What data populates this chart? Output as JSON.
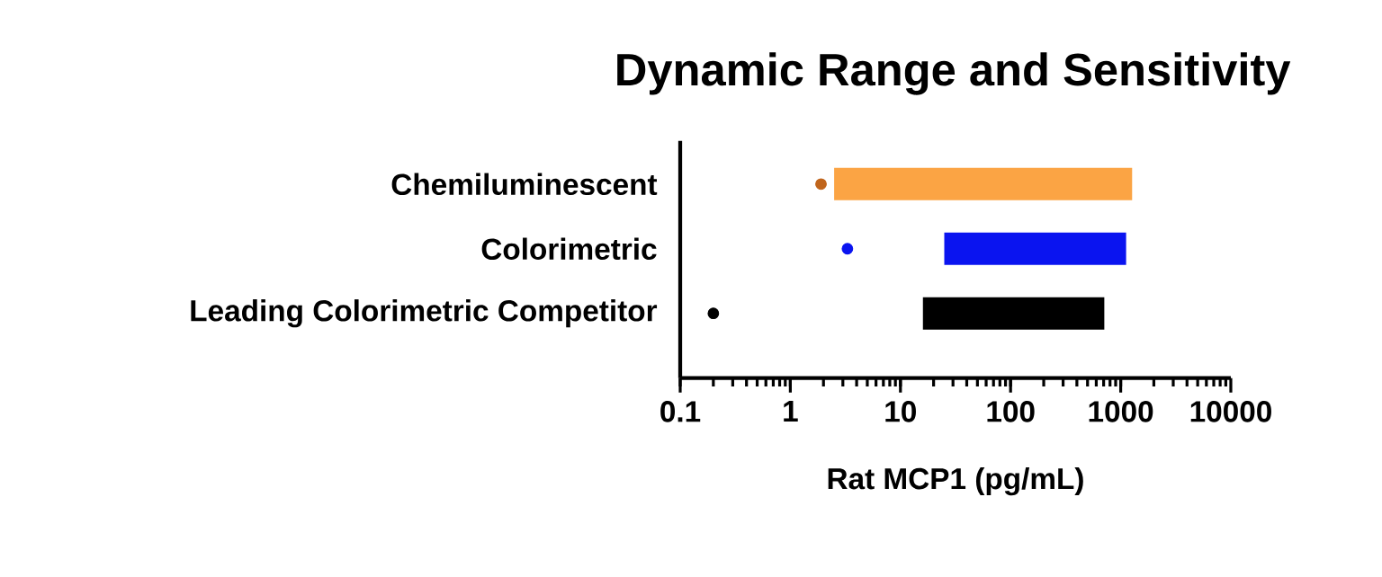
{
  "chart_data": {
    "type": "bar",
    "title": "Dynamic Range and Sensitivity",
    "xlabel": "Rat MCP1 (pg/mL)",
    "orientation": "horizontal",
    "log": "x",
    "categories": [
      "Chemiluminescent",
      "Colorimetric",
      "Leading Colorimetric Competitor"
    ],
    "xlim": [
      0.1,
      10000
    ],
    "xticks": [
      0.1,
      1,
      10,
      100,
      1000,
      10000
    ],
    "series": [
      {
        "base": [
          2.5,
          25,
          16
        ],
        "values": [
          1267.5,
          1095,
          694
        ],
        "colors": [
          "#fba444",
          "#0a14f0",
          "#000000"
        ]
      },
      {
        "type": "scatter",
        "marker": "circle",
        "values": [
          1.9,
          3.3,
          0.2
        ],
        "colors": [
          "#c0651c",
          "#0a14f0",
          "#000000"
        ]
      }
    ]
  }
}
